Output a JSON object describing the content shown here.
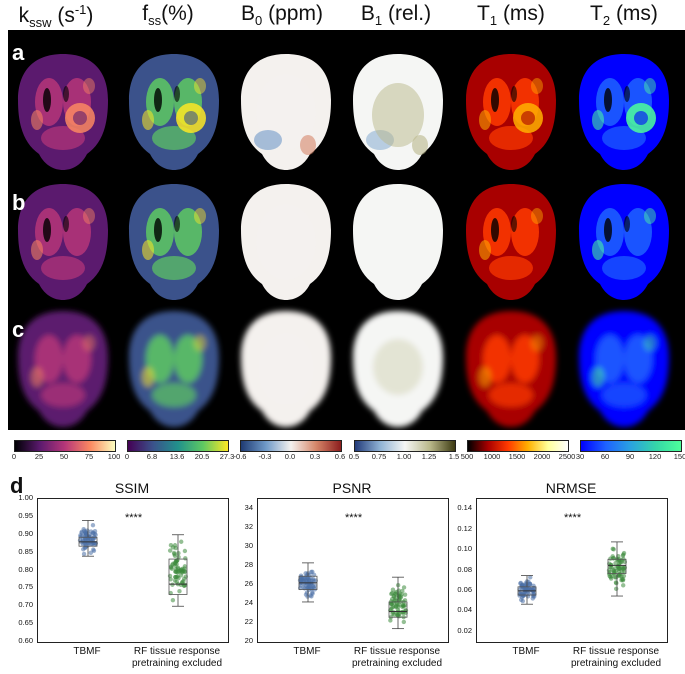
{
  "headers": [
    {
      "main": "k",
      "sub": "ssw",
      "rest_before_sup": " (s",
      "sup": "-1",
      "rest_after_sup": ")"
    },
    {
      "main": "f",
      "sub": "ss",
      "rest_before_sup": "(%)",
      "sup": "",
      "rest_after_sup": ""
    },
    {
      "main": "B",
      "sub": "0",
      "rest_before_sup": " (ppm)",
      "sup": "",
      "rest_after_sup": ""
    },
    {
      "main": "B",
      "sub": "1",
      "rest_before_sup": " (rel.)",
      "sup": "",
      "rest_after_sup": ""
    },
    {
      "main": "T",
      "sub": "1",
      "rest_before_sup": " (ms)",
      "sup": "",
      "rest_after_sup": ""
    },
    {
      "main": "T",
      "sub": "2",
      "rest_before_sup": " (ms)",
      "sup": "",
      "rest_after_sup": ""
    }
  ],
  "row_labels": [
    "a",
    "b",
    "c"
  ],
  "colorbars": [
    {
      "ticks": [
        "0",
        "25",
        "50",
        "75",
        "100"
      ],
      "colors": [
        "#000004",
        "#5b1a6e",
        "#b63679",
        "#fb8861",
        "#fcfdbf"
      ]
    },
    {
      "ticks": [
        "0",
        "6.8",
        "13.6",
        "20.5",
        "27.3"
      ],
      "colors": [
        "#440154",
        "#3b528b",
        "#21918c",
        "#5ec962",
        "#fde725"
      ]
    },
    {
      "ticks": [
        "-0.6",
        "-0.3",
        "0.0",
        "0.3",
        "0.6"
      ],
      "colors": [
        "#1f3b73",
        "#6f9ac8",
        "#f4f1ee",
        "#d6876a",
        "#8c1d1d"
      ]
    },
    {
      "ticks": [
        "0.5",
        "0.75",
        "1.00",
        "1.25",
        "1.5"
      ],
      "colors": [
        "#233b7a",
        "#8fb2d4",
        "#f5f6f4",
        "#b9b88a",
        "#3d3a12"
      ]
    },
    {
      "ticks": [
        "500",
        "1000",
        "1500",
        "2000",
        "2500"
      ],
      "colors": [
        "#000000",
        "#a80000",
        "#ff3a00",
        "#ffb000",
        "#ffff9a",
        "#ffffff"
      ]
    },
    {
      "ticks": [
        "30",
        "60",
        "90",
        "120",
        "150"
      ],
      "colors": [
        "#0000ff",
        "#1e63ff",
        "#2aa3e0",
        "#35d6a8",
        "#4dff9a"
      ]
    }
  ],
  "panel_d_label": "d",
  "chart_data": [
    {
      "type": "box",
      "title": "SSIM",
      "categories": [
        "TBMF",
        "RF tissue response\npretraining excluded"
      ],
      "yticks": [
        "0.60",
        "0.65",
        "0.70",
        "0.75",
        "0.80",
        "0.85",
        "0.90",
        "0.95",
        "1.00"
      ],
      "ylim": [
        0.6,
        1.0
      ],
      "significance": "****",
      "series": [
        {
          "color": "#4a6fa5",
          "q1": 0.868,
          "median": 0.88,
          "q3": 0.893,
          "whisker_low": 0.84,
          "whisker_high": 0.94
        },
        {
          "color": "#3d8b3d",
          "q1": 0.733,
          "median": 0.762,
          "q3": 0.832,
          "whisker_low": 0.7,
          "whisker_high": 0.9
        }
      ]
    },
    {
      "type": "box",
      "title": "PSNR",
      "categories": [
        "TBMF",
        "RF tissue response\npretraining excluded"
      ],
      "yticks": [
        "20",
        "22",
        "24",
        "26",
        "28",
        "30",
        "32",
        "34"
      ],
      "ylim": [
        20,
        35
      ],
      "significance": "****",
      "series": [
        {
          "color": "#4a6fa5",
          "q1": 25.5,
          "median": 26.2,
          "q3": 26.9,
          "whisker_low": 24.2,
          "whisker_high": 28.3
        },
        {
          "color": "#3d8b3d",
          "q1": 22.6,
          "median": 23.2,
          "q3": 24.2,
          "whisker_low": 21.4,
          "whisker_high": 26.8
        }
      ]
    },
    {
      "type": "box",
      "title": "NRMSE",
      "categories": [
        "TBMF",
        "RF tissue response\npretraining excluded"
      ],
      "yticks": [
        "0.02",
        "0.04",
        "0.06",
        "0.08",
        "0.10",
        "0.12",
        "0.14"
      ],
      "ylim": [
        0.01,
        0.15
      ],
      "significance": "****",
      "series": [
        {
          "color": "#4a6fa5",
          "q1": 0.056,
          "median": 0.06,
          "q3": 0.064,
          "whisker_low": 0.047,
          "whisker_high": 0.075
        },
        {
          "color": "#3d8b3d",
          "q1": 0.077,
          "median": 0.085,
          "q3": 0.091,
          "whisker_low": 0.055,
          "whisker_high": 0.108
        }
      ]
    }
  ]
}
